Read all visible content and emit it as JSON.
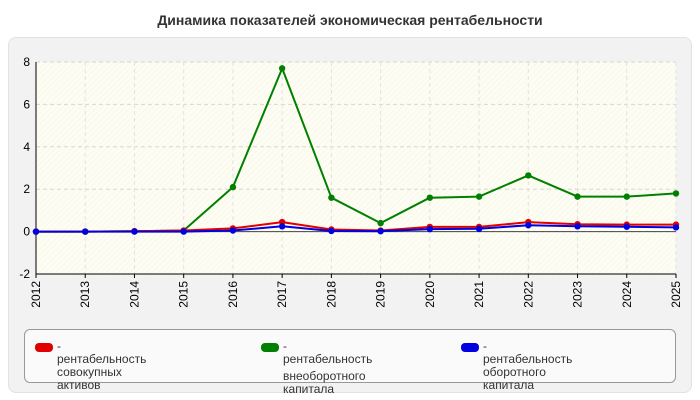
{
  "chart_data": {
    "type": "line",
    "title": "Динамика показателей экономическая рентабельности",
    "xlabel": "",
    "ylabel": "",
    "x": [
      2012,
      2013,
      2014,
      2015,
      2016,
      2017,
      2018,
      2019,
      2020,
      2021,
      2022,
      2023,
      2024,
      2025
    ],
    "ylim": [
      -2,
      8
    ],
    "yticks": [
      -2,
      0,
      2,
      4,
      6,
      8
    ],
    "grid": true,
    "legend_position": "bottom",
    "series": [
      {
        "name": "рентабельность совокупных активов",
        "color": "#e00000",
        "values": [
          0,
          0,
          0.02,
          0.05,
          0.15,
          0.45,
          0.1,
          0.05,
          0.22,
          0.22,
          0.45,
          0.35,
          0.33,
          0.33
        ]
      },
      {
        "name": "рентабельность внеоборотного капитала",
        "color": "#008000",
        "values": [
          0,
          0,
          0.02,
          0.05,
          2.1,
          7.7,
          1.6,
          0.4,
          1.6,
          1.65,
          2.65,
          1.65,
          1.65,
          1.8
        ]
      },
      {
        "name": "рентабельность оборотного капитала",
        "color": "#0000e0",
        "values": [
          0,
          0,
          0,
          0,
          0.05,
          0.25,
          0.03,
          0.02,
          0.12,
          0.13,
          0.3,
          0.25,
          0.23,
          0.2
        ]
      }
    ],
    "legend": {
      "prefix": "- ",
      "lines": [
        [
          "рентабельность совокупных",
          "активов"
        ],
        [
          "рентабельность",
          "внеоборотного капитала"
        ],
        [
          "рентабельность оборотного",
          "капитала"
        ]
      ]
    }
  }
}
